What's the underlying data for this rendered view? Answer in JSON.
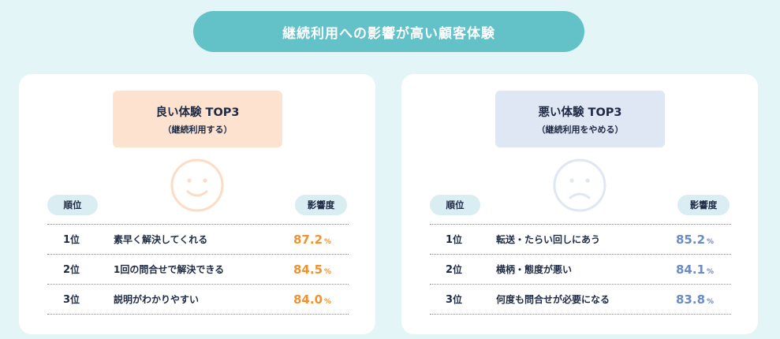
{
  "banner": "継続利用への影響が高い顧客体験",
  "good": {
    "title": "良い体験 TOP3",
    "subtitle": "（継続利用する）",
    "rank_header": "順位",
    "impact_header": "影響度",
    "face_icon": "smile-face-icon",
    "accent": "#f0932e",
    "rows": [
      {
        "rank": "1",
        "rank_suffix": "位",
        "label": "素早く解決してくれる",
        "value": "87.2",
        "unit": "%"
      },
      {
        "rank": "2",
        "rank_suffix": "位",
        "label": "1回の問合せで解決できる",
        "value": "84.5",
        "unit": "%"
      },
      {
        "rank": "3",
        "rank_suffix": "位",
        "label": "説明がわかりやすい",
        "value": "84.0",
        "unit": "%"
      }
    ]
  },
  "bad": {
    "title": "悪い体験 TOP3",
    "subtitle": "（継続利用をやめる）",
    "rank_header": "順位",
    "impact_header": "影響度",
    "face_icon": "frown-face-icon",
    "accent": "#6b8bc4",
    "rows": [
      {
        "rank": "1",
        "rank_suffix": "位",
        "label": "転送・たらい回しにあう",
        "value": "85.2",
        "unit": "%"
      },
      {
        "rank": "2",
        "rank_suffix": "位",
        "label": "横柄・態度が悪い",
        "value": "84.1",
        "unit": "%"
      },
      {
        "rank": "3",
        "rank_suffix": "位",
        "label": "何度も問合せが必要になる",
        "value": "83.8",
        "unit": "%"
      }
    ]
  }
}
